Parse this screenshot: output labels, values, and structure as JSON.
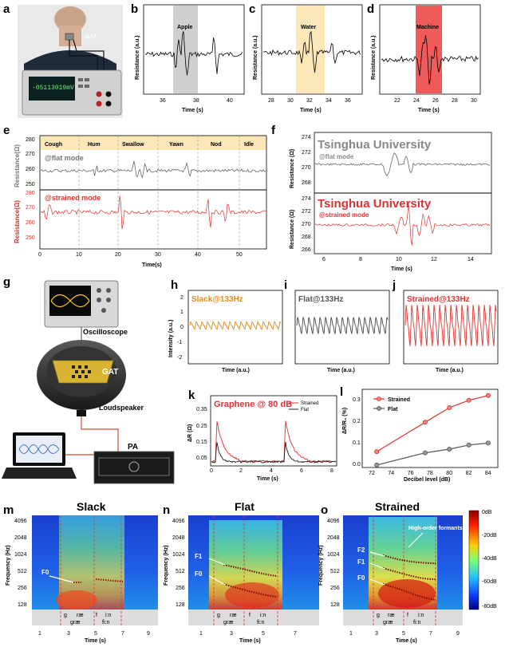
{
  "panels": {
    "a": {
      "label": "a",
      "sensor": "GAT",
      "meter": "-05113019mV"
    },
    "b": {
      "label": "b",
      "word": "Apple",
      "xlabel": "Time (s)",
      "ylabel": "Resistance (a.u.)",
      "ticks": [
        "36",
        "38",
        "40"
      ]
    },
    "c": {
      "label": "c",
      "word": "Water",
      "xlabel": "Time (s)",
      "ylabel": "Resistance (a.u.)",
      "ticks": [
        "28",
        "30",
        "32",
        "34",
        "36"
      ]
    },
    "d": {
      "label": "d",
      "word": "Machine",
      "xlabel": "Time (s)",
      "ylabel": "Resistance (a.u.)",
      "ticks": [
        "22",
        "24",
        "26",
        "28",
        "30"
      ]
    },
    "e": {
      "label": "e",
      "actions": [
        "Cough",
        "Hum",
        "Swallow",
        "Yawn",
        "Nod",
        "Idle"
      ],
      "flat_mode": "@flat mode",
      "strained_mode": "@strained mode",
      "ylabel_flat": "Resistance(Ω)",
      "ylabel_strained": "Resistance(Ω)",
      "xlabel": "Time(s)",
      "yticks_flat": [
        "250",
        "260",
        "270",
        "280"
      ],
      "yticks_strained": [
        "250",
        "260",
        "270",
        "280"
      ],
      "xticks": [
        "0",
        "10",
        "20",
        "30",
        "40",
        "50"
      ]
    },
    "f": {
      "label": "f",
      "title_flat": "Tsinghua University",
      "flat_mode": "@flat mode",
      "title_strained": "Tsinghua University",
      "strained_mode": "@strained mode",
      "ylabel": "Resistance (Ω)",
      "xlabel": "Time (s)",
      "yticks_flat": [
        "268",
        "270",
        "272",
        "274"
      ],
      "yticks_strained": [
        "266",
        "268",
        "270",
        "272",
        "274"
      ],
      "xticks": [
        "6",
        "8",
        "10",
        "12",
        "14"
      ]
    },
    "g": {
      "label": "g",
      "oscilloscope": "Oscilloscope",
      "gat": "GAT",
      "loudspeaker": "Loudspeaker",
      "pa": "PA"
    },
    "h": {
      "label": "h",
      "title": "Slack@133Hz",
      "ylabel": "Intensity (a.u.)",
      "xlabel": "Time (a.u.)",
      "yticks": [
        "2",
        "1",
        "0",
        "-1",
        "-2"
      ]
    },
    "i": {
      "label": "i",
      "title": "Flat@133Hz",
      "xlabel": "Time (a.u.)"
    },
    "j": {
      "label": "j",
      "title": "Strained@133Hz",
      "xlabel": "Time (a.u.)"
    },
    "k": {
      "label": "k",
      "title": "Graphene @ 80 dB",
      "legend": [
        "Strained",
        "Flat"
      ],
      "ylabel": "ΔR (Ω)",
      "xlabel": "Time (s)",
      "yticks": [
        "0.35",
        "0.25",
        "0.15",
        "0.05"
      ],
      "xticks": [
        "0",
        "2",
        "4",
        "6",
        "8"
      ]
    },
    "l": {
      "label": "l",
      "legend": [
        "Strained",
        "Flat"
      ],
      "ylabel": "ΔR/R₀ (%)",
      "xlabel": "Decibel level (dB)",
      "yticks": [
        "0.0",
        "0.1",
        "0.2",
        "0.3"
      ],
      "xticks": [
        "72",
        "74",
        "76",
        "78",
        "80",
        "82",
        "84"
      ]
    },
    "m": {
      "label": "m",
      "title": "Slack",
      "ylabel": "Frequency (Hz)",
      "xlabel": "Time (s)",
      "yticks": [
        "4096",
        "2048",
        "1024",
        "512",
        "256",
        "128"
      ],
      "xticks": [
        "1",
        "3",
        "5",
        "7",
        "9"
      ],
      "formants": [
        "F0"
      ],
      "phonemes": [
        "g",
        "ræ",
        "f",
        "i:n"
      ],
      "words": [
        "græ",
        "fi:n"
      ]
    },
    "n": {
      "label": "n",
      "title": "Flat",
      "ylabel": "Frequency (Hz)",
      "xlabel": "Time (s)",
      "yticks": [
        "4096",
        "2048",
        "1024",
        "512",
        "256",
        "128"
      ],
      "xticks": [
        "1",
        "3",
        "5",
        "7"
      ],
      "formants": [
        "F1",
        "F0"
      ],
      "phonemes": [
        "g",
        "ræ",
        "f",
        "i:n"
      ],
      "words": [
        "græ",
        "fi:n"
      ]
    },
    "o": {
      "label": "o",
      "title": "Strained",
      "ylabel": "Frequency (Hz)",
      "xlabel": "Time (s)",
      "yticks": [
        "4096",
        "2048",
        "1024",
        "512",
        "256",
        "128"
      ],
      "xticks": [
        "1",
        "3",
        "5",
        "7",
        "9"
      ],
      "formants": [
        "F2",
        "F1",
        "F0"
      ],
      "annotation": "High-order formants",
      "phonemes": [
        "g",
        "ræ",
        "f",
        "i:n"
      ],
      "words": [
        "græ",
        "fi:n"
      ],
      "colorbar": [
        "0dB",
        "-20dB",
        "-40dB",
        "-60dB",
        "-80dB"
      ]
    }
  },
  "chart_data": [
    {
      "type": "line",
      "panel": "l",
      "title": "",
      "xlabel": "Decibel level (dB)",
      "ylabel": "ΔR/R₀ (%)",
      "xlim": [
        71,
        85
      ],
      "ylim": [
        0,
        0.32
      ],
      "series": [
        {
          "name": "Strained",
          "color": "#e03030",
          "x": [
            72.5,
            77.5,
            80,
            82,
            84
          ],
          "values": [
            0.065,
            0.185,
            0.245,
            0.275,
            0.295
          ]
        },
        {
          "name": "Flat",
          "color": "#555555",
          "x": [
            72.5,
            77.5,
            80,
            82,
            84
          ],
          "values": [
            0.01,
            0.06,
            0.075,
            0.092,
            0.1
          ]
        }
      ]
    }
  ],
  "colors": {
    "red": "#e03030",
    "gray": "#555555",
    "orange": "#e8891c",
    "apple_band": "#cfcfcf",
    "water_band": "#fbe7b8",
    "machine_band": "#ef5a5a"
  }
}
